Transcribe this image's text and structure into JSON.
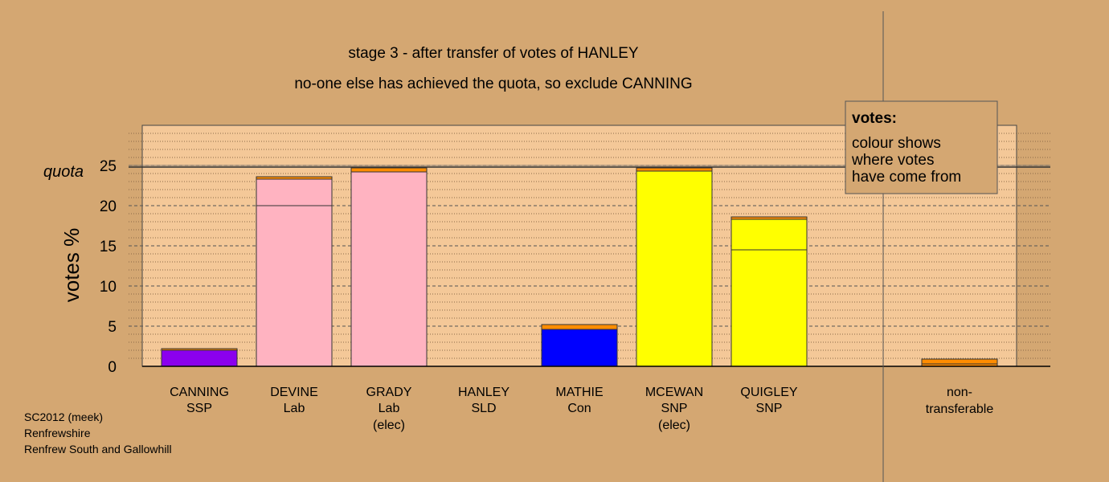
{
  "title_line1": "stage 3 - after transfer of votes of HANLEY",
  "title_line2": "no-one else has achieved the quota, so exclude CANNING",
  "legend": {
    "heading": "votes:",
    "lines": [
      "colour shows",
      "where votes",
      "have come from"
    ]
  },
  "footer": [
    "SC2012 (meek)",
    "Renfrewshire",
    "Renfrew South and Gallowhill"
  ],
  "chart_data": {
    "type": "bar",
    "stacked": true,
    "title": "stage 3 - after transfer of votes of HANLEY",
    "subtitle": "no-one else has achieved the quota, so exclude CANNING",
    "ylabel": "votes %",
    "ylim": [
      0,
      30
    ],
    "yticks": [
      0,
      5,
      10,
      15,
      20,
      25
    ],
    "quota": 24.8,
    "quota_label": "quota",
    "grid": true,
    "legend_position": "top-right",
    "colors": {
      "SSP": "#8b00ee",
      "Lab": "#ffb3c1",
      "Con": "#0000ff",
      "SNP": "#ffff00",
      "SLD": "#ff8c00",
      "NT": "#ff8c00",
      "background": "#d4a772",
      "plot": "#f4c898"
    },
    "bars": [
      {
        "category": "CANNING",
        "sublabel": [
          "SSP"
        ],
        "segments": [
          {
            "from": "SSP",
            "value": 2.0
          },
          {
            "from": "SLD",
            "value": 0.2
          }
        ]
      },
      {
        "category": "DEVINE",
        "sublabel": [
          "Lab"
        ],
        "segments": [
          {
            "from": "Lab",
            "value": 20.0
          },
          {
            "from": "Lab",
            "value": 3.3
          },
          {
            "from": "SLD",
            "value": 0.3
          }
        ]
      },
      {
        "category": "GRADY",
        "sublabel": [
          "Lab",
          "(elec)"
        ],
        "segments": [
          {
            "from": "Lab",
            "value": 24.2
          },
          {
            "from": "SLD",
            "value": 0.5
          }
        ]
      },
      {
        "category": "HANLEY",
        "sublabel": [
          "SLD"
        ],
        "segments": []
      },
      {
        "category": "MATHIE",
        "sublabel": [
          "Con"
        ],
        "segments": [
          {
            "from": "Con",
            "value": 4.6
          },
          {
            "from": "SLD",
            "value": 0.6
          }
        ]
      },
      {
        "category": "MCEWAN",
        "sublabel": [
          "SNP",
          "(elec)"
        ],
        "segments": [
          {
            "from": "SNP",
            "value": 24.3
          },
          {
            "from": "SLD",
            "value": 0.4
          }
        ]
      },
      {
        "category": "QUIGLEY",
        "sublabel": [
          "SNP"
        ],
        "segments": [
          {
            "from": "SNP",
            "value": 14.5
          },
          {
            "from": "SNP",
            "value": 3.8
          },
          {
            "from": "SLD",
            "value": 0.3
          }
        ]
      }
    ],
    "nontransferable": {
      "category": "non-",
      "sublabel": [
        "transferable"
      ],
      "segments": [
        {
          "from": "NT",
          "value": 0.3
        },
        {
          "from": "SLD",
          "value": 0.6
        }
      ]
    }
  }
}
